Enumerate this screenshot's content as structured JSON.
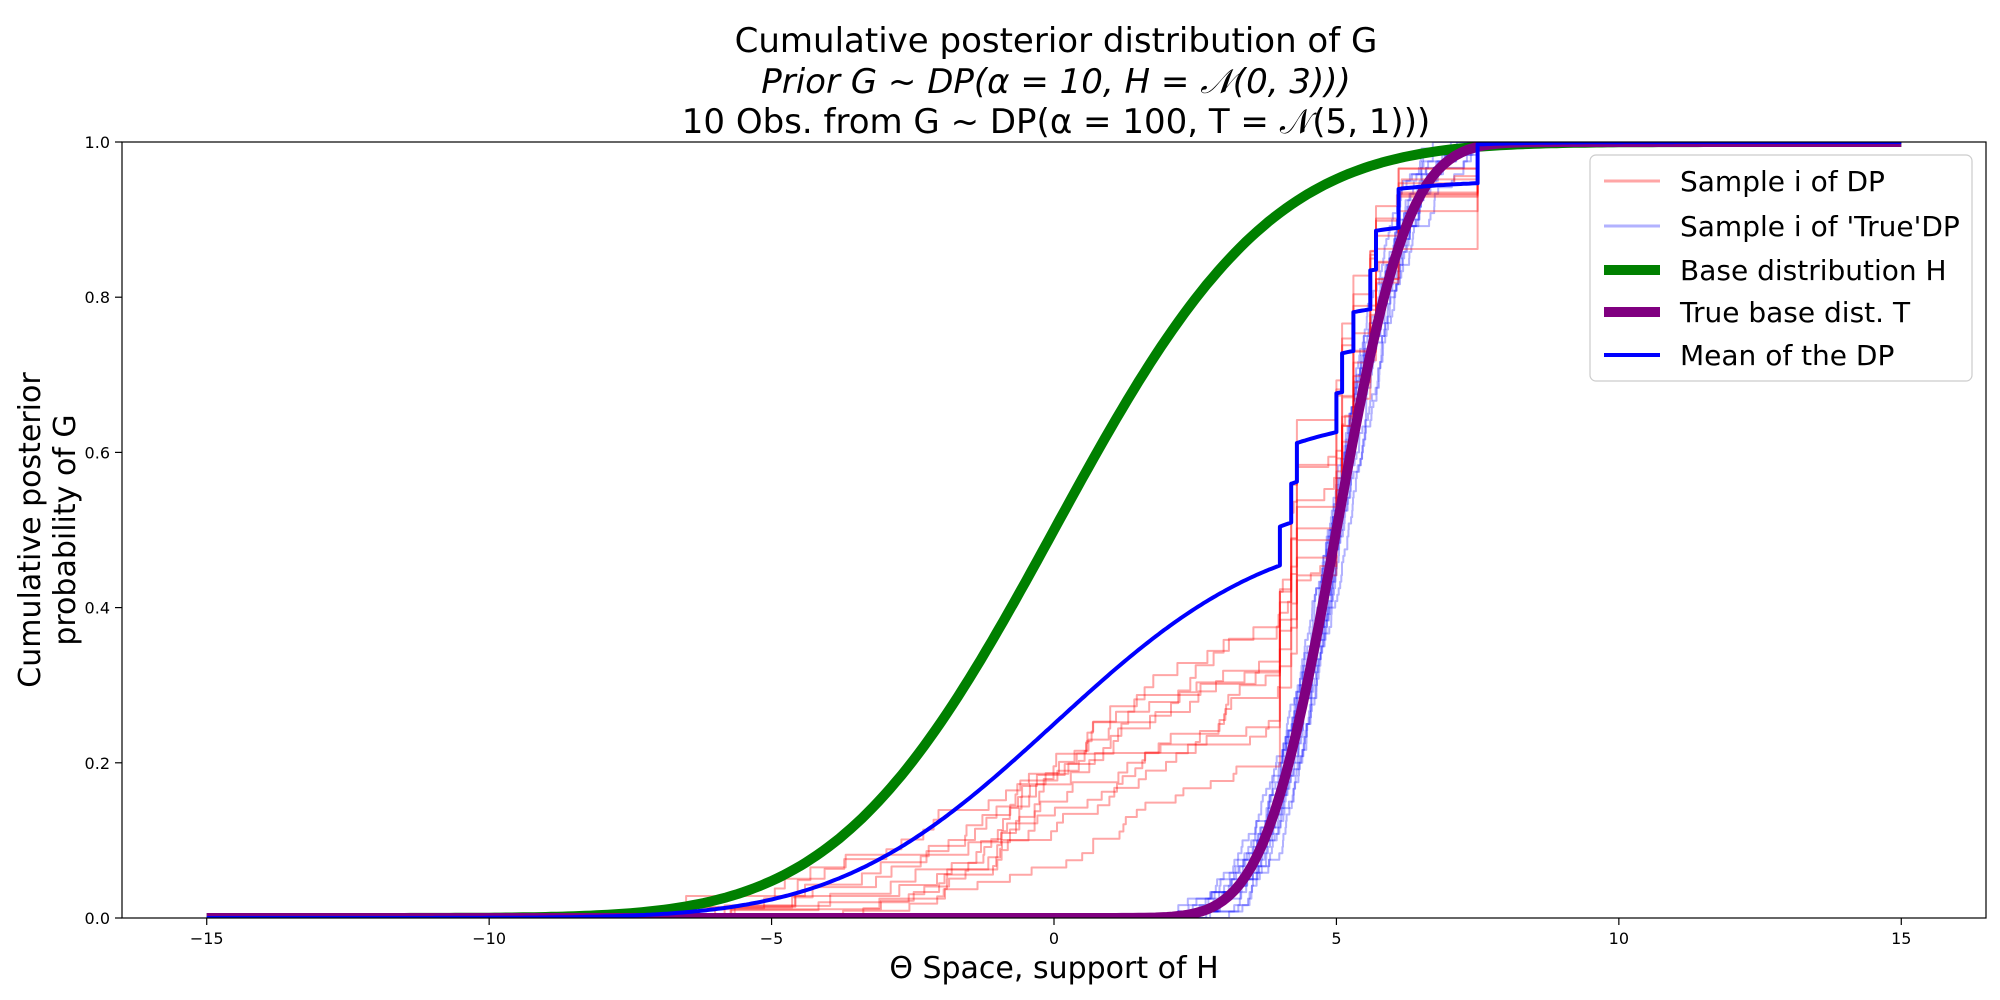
{
  "chart_data": {
    "type": "line",
    "title_lines": [
      "Cumulative posterior distribution of G",
      "Prior G ~ DP(α = 10, H = 𝒩(0, 3)))",
      "10 Obs. from G ~ DP(α = 100, T = 𝒩(5, 1)))"
    ],
    "xlabel": "Θ Space, support of H",
    "ylabel_lines": [
      "Cumulative posterior",
      "probability of G"
    ],
    "xlim": [
      -16.5,
      16.5
    ],
    "ylim": [
      0.0,
      1.0
    ],
    "xticks": [
      -15,
      -10,
      -5,
      0,
      5,
      10,
      15
    ],
    "xtick_labels": [
      "−15",
      "−10",
      "−5",
      "0",
      "5",
      "10",
      "15"
    ],
    "yticks": [
      0.0,
      0.2,
      0.4,
      0.6,
      0.8,
      1.0
    ],
    "ytick_labels": [
      "0.0",
      "0.2",
      "0.4",
      "0.6",
      "0.8",
      "1.0"
    ],
    "grid": false,
    "legend_placement": "top-right",
    "observations": [
      4.0,
      4.2,
      4.3,
      5.0,
      5.1,
      5.3,
      5.6,
      5.7,
      6.1,
      7.5
    ],
    "series": [
      {
        "name": "Sample i of DP",
        "color": "#ff0000",
        "opacity": 0.35,
        "width": 2,
        "kind": "posterior-dp-samples",
        "count": 10
      },
      {
        "name": "Sample i of 'True'DP",
        "color": "#0000ff",
        "opacity": 0.3,
        "width": 2,
        "kind": "true-dp-samples",
        "count": 12
      },
      {
        "name": "Base distribution H",
        "color": "#008000",
        "width": 10,
        "kind": "normal-cdf",
        "mean": 0,
        "std": 3
      },
      {
        "name": "True base dist. T",
        "color": "#800080",
        "width": 10,
        "kind": "normal-cdf",
        "mean": 5,
        "std": 1
      },
      {
        "name": "Mean of the DP",
        "color": "#0000ff",
        "width": 4,
        "kind": "posterior-mean",
        "prior_mean": 0,
        "prior_std": 3,
        "prior_alpha": 10
      }
    ]
  }
}
